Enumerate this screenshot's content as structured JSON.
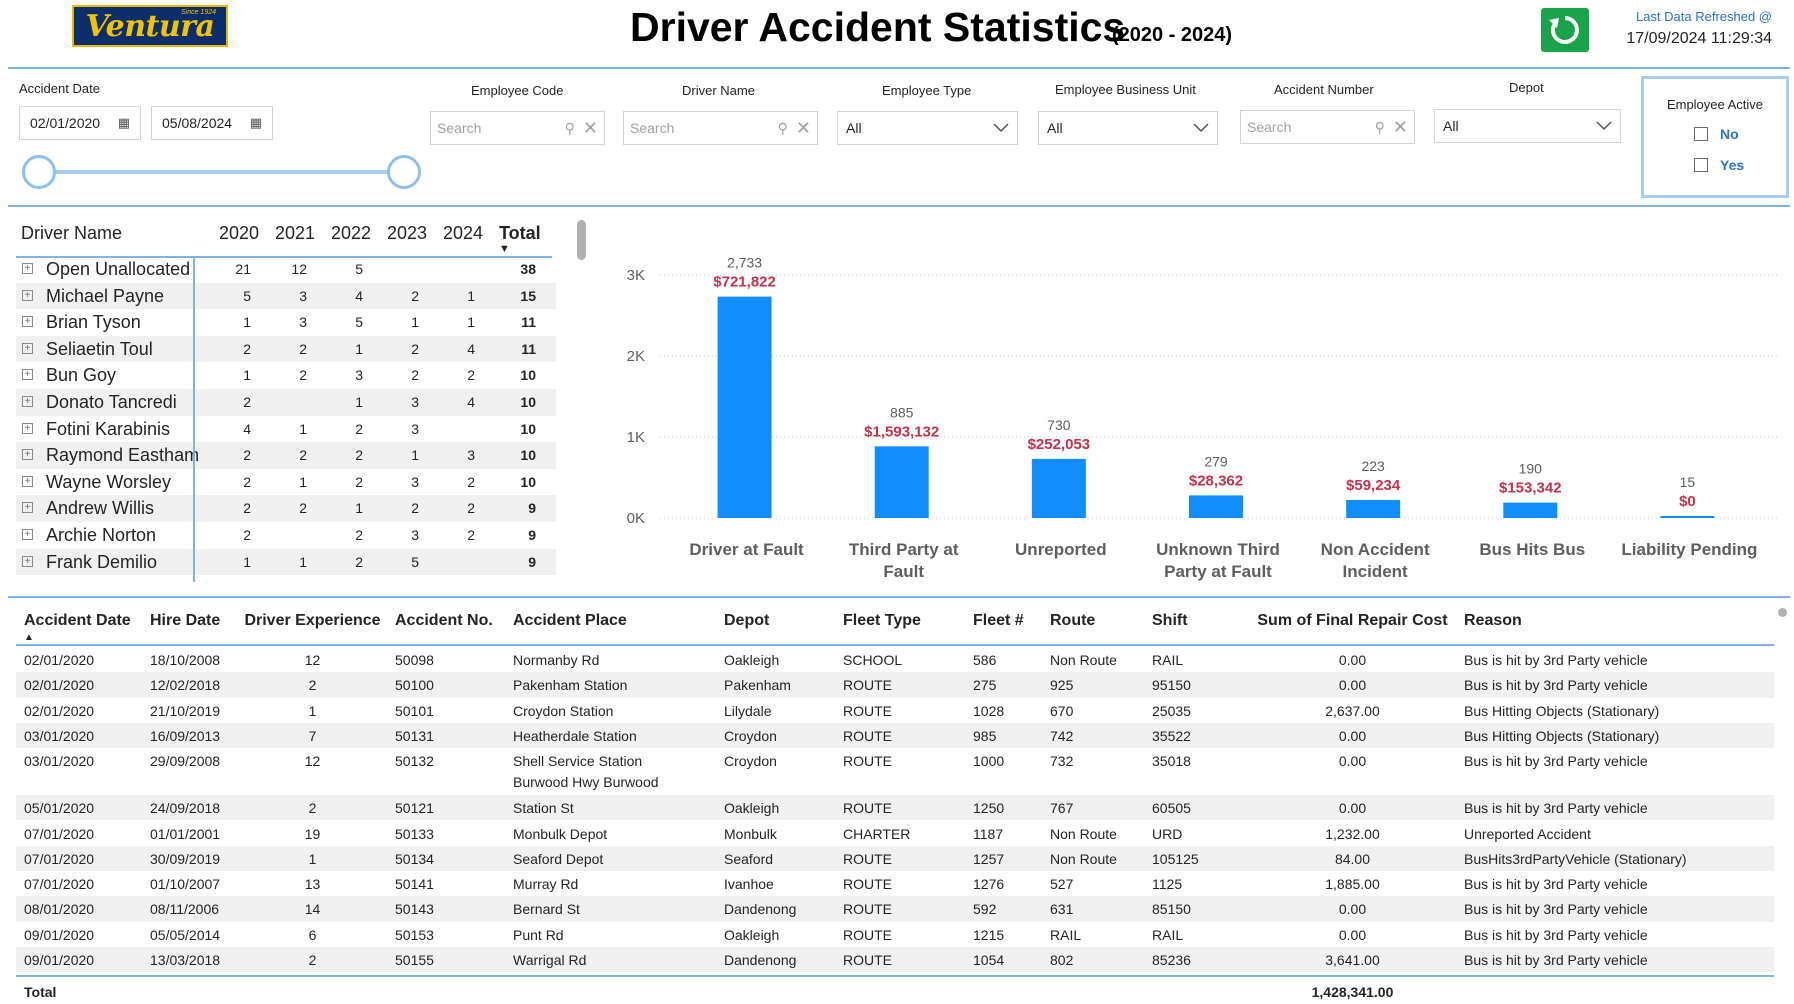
{
  "header": {
    "logo_text": "Ventura",
    "logo_since": "Since 1924",
    "title": "Driver Accident Statistics",
    "title_years": "(2020 - 2024)",
    "refresh_label": "Last Data Refreshed @",
    "refresh_time": "17/09/2024 11:29:34",
    "refresh_icon": "refresh-icon"
  },
  "filters": {
    "accident_date": {
      "label": "Accident Date",
      "start": "02/01/2020",
      "end": "05/08/2024"
    },
    "employee_code": {
      "label": "Employee Code",
      "placeholder": "Search"
    },
    "driver_name": {
      "label": "Driver Name",
      "placeholder": "Search"
    },
    "employee_type": {
      "label": "Employee Type",
      "value": "All"
    },
    "business_unit": {
      "label": "Employee Business Unit",
      "value": "All"
    },
    "accident_number": {
      "label": "Accident Number",
      "placeholder": "Search"
    },
    "depot": {
      "label": "Depot",
      "value": "All"
    },
    "employee_active": {
      "label": "Employee Active",
      "options": [
        "No",
        "Yes"
      ]
    }
  },
  "matrix": {
    "headers": [
      "Driver Name",
      "2020",
      "2021",
      "2022",
      "2023",
      "2024",
      "Total"
    ],
    "rows": [
      {
        "name": "Open Unallocated",
        "v": [
          "21",
          "12",
          "5",
          "",
          ""
        ],
        "total": "38"
      },
      {
        "name": "Michael Payne",
        "v": [
          "5",
          "3",
          "4",
          "2",
          "1"
        ],
        "total": "15"
      },
      {
        "name": "Brian Tyson",
        "v": [
          "1",
          "3",
          "5",
          "1",
          "1"
        ],
        "total": "11"
      },
      {
        "name": "Seliaetin Toul",
        "v": [
          "2",
          "2",
          "1",
          "2",
          "4"
        ],
        "total": "11"
      },
      {
        "name": "Bun Goy",
        "v": [
          "1",
          "2",
          "3",
          "2",
          "2"
        ],
        "total": "10"
      },
      {
        "name": "Donato Tancredi",
        "v": [
          "2",
          "",
          "1",
          "3",
          "4"
        ],
        "total": "10"
      },
      {
        "name": "Fotini Karabinis",
        "v": [
          "4",
          "1",
          "2",
          "3",
          ""
        ],
        "total": "10"
      },
      {
        "name": "Raymond Eastham",
        "v": [
          "2",
          "2",
          "2",
          "1",
          "3"
        ],
        "total": "10"
      },
      {
        "name": "Wayne Worsley",
        "v": [
          "2",
          "1",
          "2",
          "3",
          "2"
        ],
        "total": "10"
      },
      {
        "name": "Andrew Willis",
        "v": [
          "2",
          "2",
          "1",
          "2",
          "2"
        ],
        "total": "9"
      },
      {
        "name": "Archie Norton",
        "v": [
          "2",
          "",
          "2",
          "3",
          "2"
        ],
        "total": "9"
      },
      {
        "name": "Frank Demilio",
        "v": [
          "1",
          "1",
          "2",
          "5",
          ""
        ],
        "total": "9"
      }
    ]
  },
  "chart_data": {
    "type": "bar",
    "categories": [
      "Driver at Fault",
      "Third Party at Fault",
      "Unreported",
      "Unknown Third Party at Fault",
      "Non Accident Incident",
      "Bus Hits Bus",
      "Liability Pending"
    ],
    "values": [
      2733,
      885,
      730,
      279,
      223,
      190,
      15
    ],
    "value_labels": [
      "2,733",
      "885",
      "730",
      "279",
      "223",
      "190",
      "15"
    ],
    "cost_labels": [
      "$721,822",
      "$1,593,132",
      "$252,053",
      "$28,362",
      "$59,234",
      "$153,342",
      "$0"
    ],
    "y_ticks": [
      "0K",
      "1K",
      "2K",
      "3K"
    ],
    "ylim": [
      0,
      3000
    ],
    "grid": true,
    "bar_color": "#118dff",
    "cost_color": "#c4314b"
  },
  "table": {
    "headers": [
      "Accident Date",
      "Hire Date",
      "Driver Experience",
      "Accident No.",
      "Accident Place",
      "Depot",
      "Fleet Type",
      "Fleet #",
      "Route",
      "Shift",
      "Sum of Final Repair Cost",
      "Reason"
    ],
    "rows": [
      [
        "02/01/2020",
        "18/10/2008",
        "12",
        "50098",
        "Normanby Rd",
        "Oakleigh",
        "SCHOOL",
        "586",
        "Non Route",
        "RAIL",
        "0.00",
        "Bus is hit by 3rd Party vehicle"
      ],
      [
        "02/01/2020",
        "12/02/2018",
        "2",
        "50100",
        "Pakenham Station",
        "Pakenham",
        "ROUTE",
        "275",
        "925",
        "95150",
        "0.00",
        "Bus is hit by 3rd Party vehicle"
      ],
      [
        "02/01/2020",
        "21/10/2019",
        "1",
        "50101",
        "Croydon Station",
        "Lilydale",
        "ROUTE",
        "1028",
        "670",
        "25035",
        "2,637.00",
        "Bus Hitting Objects (Stationary)"
      ],
      [
        "03/01/2020",
        "16/09/2013",
        "7",
        "50131",
        "Heatherdale Station",
        "Croydon",
        "ROUTE",
        "985",
        "742",
        "35522",
        "0.00",
        "Bus Hitting Objects (Stationary)"
      ],
      [
        "03/01/2020",
        "29/09/2008",
        "12",
        "50132",
        "Shell Service Station",
        "Croydon",
        "ROUTE",
        "1000",
        "732",
        "35018",
        "0.00",
        "Bus is hit by 3rd Party vehicle",
        "Burwood Hwy Burwood"
      ],
      [
        "05/01/2020",
        "24/09/2018",
        "2",
        "50121",
        "Station St",
        "Oakleigh",
        "ROUTE",
        "1250",
        "767",
        "60505",
        "0.00",
        "Bus is hit by 3rd Party vehicle"
      ],
      [
        "07/01/2020",
        "01/01/2001",
        "19",
        "50133",
        "Monbulk Depot",
        "Monbulk",
        "CHARTER",
        "1187",
        "Non Route",
        "URD",
        "1,232.00",
        "Unreported Accident"
      ],
      [
        "07/01/2020",
        "30/09/2019",
        "1",
        "50134",
        "Seaford Depot",
        "Seaford",
        "ROUTE",
        "1257",
        "Non Route",
        "105125",
        "84.00",
        "BusHits3rdPartyVehicle (Stationary)"
      ],
      [
        "07/01/2020",
        "01/10/2007",
        "13",
        "50141",
        "Murray Rd",
        "Ivanhoe",
        "ROUTE",
        "1276",
        "527",
        "1125",
        "1,885.00",
        "Bus is hit by 3rd Party vehicle"
      ],
      [
        "08/01/2020",
        "08/11/2006",
        "14",
        "50143",
        "Bernard St",
        "Dandenong",
        "ROUTE",
        "592",
        "631",
        "85150",
        "0.00",
        "Bus is hit by 3rd Party vehicle"
      ],
      [
        "09/01/2020",
        "05/05/2014",
        "6",
        "50153",
        "Punt Rd",
        "Oakleigh",
        "ROUTE",
        "1215",
        "RAIL",
        "RAIL",
        "0.00",
        "Bus is hit by 3rd Party vehicle"
      ],
      [
        "09/01/2020",
        "13/03/2018",
        "2",
        "50155",
        "Warrigal Rd",
        "Dandenong",
        "ROUTE",
        "1054",
        "802",
        "85236",
        "3,641.00",
        "Bus is hit by 3rd Party vehicle"
      ]
    ],
    "total_label": "Total",
    "total_value": "1,428,341.00"
  }
}
